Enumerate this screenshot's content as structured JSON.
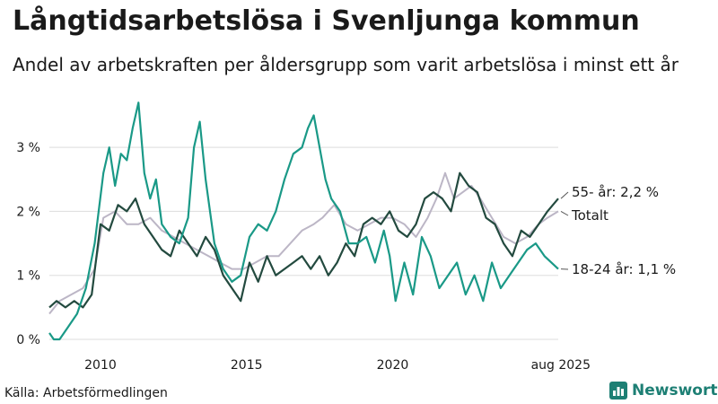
{
  "title": "Långtidsarbetslösa i Svenljunga kommun",
  "subtitle": "Andel av arbetskraften per åldersgrupp som varit arbetslösa i minst ett år",
  "source": "Källa: Arbetsförmedlingen",
  "brand": {
    "name": "Newsworthy",
    "icon": "bar-chart-logo-icon"
  },
  "colors": {
    "s55": "#234a3f",
    "total": "#bcb6c6",
    "youth": "#1a9987",
    "grid": "#dddddd",
    "brand": "#1d7f74"
  },
  "chart_data": {
    "type": "line",
    "title": "Långtidsarbetslösa i Svenljunga kommun",
    "xlim": [
      2008.25,
      2025.67
    ],
    "ylim": [
      0,
      3.9
    ],
    "grid": true,
    "y_ticks": [
      {
        "value": 0,
        "label": "0 %"
      },
      {
        "value": 1,
        "label": "1 %"
      },
      {
        "value": 2,
        "label": "2 %"
      },
      {
        "value": 3,
        "label": "3 %"
      }
    ],
    "x_ticks": [
      {
        "value": 2010,
        "label": "2010"
      },
      {
        "value": 2015,
        "label": "2015"
      },
      {
        "value": 2020,
        "label": "2020"
      },
      {
        "value": 2025.67,
        "label": "aug 2025"
      }
    ],
    "end_labels": [
      {
        "series": "s55",
        "label": "55- år: 2,2 %"
      },
      {
        "series": "total",
        "label": "Totalt"
      },
      {
        "series": "youth",
        "label": "18-24 år: 1,1 %"
      }
    ],
    "series": [
      {
        "key": "total",
        "name": "Totalt",
        "x": [
          2008.25,
          2008.6,
          2009.0,
          2009.4,
          2009.8,
          2010.1,
          2010.5,
          2010.9,
          2011.3,
          2011.7,
          2012.1,
          2012.5,
          2012.9,
          2013.3,
          2013.7,
          2014.1,
          2014.5,
          2014.9,
          2015.3,
          2015.7,
          2016.1,
          2016.5,
          2016.9,
          2017.3,
          2017.6,
          2018.0,
          2018.4,
          2018.8,
          2019.2,
          2019.6,
          2020.0,
          2020.4,
          2020.8,
          2021.2,
          2021.5,
          2021.8,
          2022.1,
          2022.4,
          2022.7,
          2023.0,
          2023.4,
          2023.8,
          2024.2,
          2024.6,
          2025.0,
          2025.3,
          2025.67
        ],
        "values": [
          0.4,
          0.6,
          0.7,
          0.8,
          1.1,
          1.9,
          2.0,
          1.8,
          1.8,
          1.9,
          1.7,
          1.6,
          1.5,
          1.4,
          1.3,
          1.2,
          1.1,
          1.1,
          1.2,
          1.3,
          1.3,
          1.5,
          1.7,
          1.8,
          1.9,
          2.1,
          1.8,
          1.7,
          1.8,
          1.9,
          1.9,
          1.8,
          1.6,
          1.9,
          2.2,
          2.6,
          2.2,
          2.3,
          2.4,
          2.2,
          1.9,
          1.6,
          1.5,
          1.6,
          1.8,
          1.9,
          2.0
        ]
      },
      {
        "key": "s55",
        "name": "55- år",
        "x": [
          2008.25,
          2008.5,
          2008.8,
          2009.1,
          2009.4,
          2009.7,
          2010.0,
          2010.3,
          2010.6,
          2010.9,
          2011.2,
          2011.5,
          2011.8,
          2012.1,
          2012.4,
          2012.7,
          2013.0,
          2013.3,
          2013.6,
          2013.9,
          2014.2,
          2014.5,
          2014.8,
          2015.1,
          2015.4,
          2015.7,
          2016.0,
          2016.3,
          2016.6,
          2016.9,
          2017.2,
          2017.5,
          2017.8,
          2018.1,
          2018.4,
          2018.7,
          2019.0,
          2019.3,
          2019.6,
          2019.9,
          2020.2,
          2020.5,
          2020.8,
          2021.1,
          2021.4,
          2021.7,
          2022.0,
          2022.3,
          2022.6,
          2022.9,
          2023.2,
          2023.5,
          2023.8,
          2024.1,
          2024.4,
          2024.7,
          2025.0,
          2025.3,
          2025.67
        ],
        "values": [
          0.5,
          0.6,
          0.5,
          0.6,
          0.5,
          0.7,
          1.8,
          1.7,
          2.1,
          2.0,
          2.2,
          1.8,
          1.6,
          1.4,
          1.3,
          1.7,
          1.5,
          1.3,
          1.6,
          1.4,
          1.0,
          0.8,
          0.6,
          1.2,
          0.9,
          1.3,
          1.0,
          1.1,
          1.2,
          1.3,
          1.1,
          1.3,
          1.0,
          1.2,
          1.5,
          1.3,
          1.8,
          1.9,
          1.8,
          2.0,
          1.7,
          1.6,
          1.8,
          2.2,
          2.3,
          2.2,
          2.0,
          2.6,
          2.4,
          2.3,
          1.9,
          1.8,
          1.5,
          1.3,
          1.7,
          1.6,
          1.8,
          2.0,
          2.2
        ]
      },
      {
        "key": "youth",
        "name": "18-24 år",
        "x": [
          2008.25,
          2008.4,
          2008.6,
          2008.9,
          2009.2,
          2009.5,
          2009.8,
          2010.1,
          2010.3,
          2010.5,
          2010.7,
          2010.9,
          2011.1,
          2011.3,
          2011.5,
          2011.7,
          2011.9,
          2012.1,
          2012.4,
          2012.7,
          2013.0,
          2013.2,
          2013.4,
          2013.6,
          2013.9,
          2014.2,
          2014.5,
          2014.8,
          2015.1,
          2015.4,
          2015.7,
          2016.0,
          2016.3,
          2016.6,
          2016.9,
          2017.1,
          2017.3,
          2017.5,
          2017.7,
          2017.9,
          2018.2,
          2018.5,
          2018.8,
          2019.1,
          2019.4,
          2019.7,
          2019.9,
          2020.1,
          2020.4,
          2020.7,
          2021.0,
          2021.3,
          2021.6,
          2021.9,
          2022.2,
          2022.5,
          2022.8,
          2023.1,
          2023.4,
          2023.7,
          2024.0,
          2024.3,
          2024.6,
          2024.9,
          2025.2,
          2025.67
        ],
        "values": [
          0.1,
          0.0,
          0.0,
          0.2,
          0.4,
          0.8,
          1.5,
          2.6,
          3.0,
          2.4,
          2.9,
          2.8,
          3.3,
          3.7,
          2.6,
          2.2,
          2.5,
          1.8,
          1.6,
          1.5,
          1.9,
          3.0,
          3.4,
          2.5,
          1.5,
          1.1,
          0.9,
          1.0,
          1.6,
          1.8,
          1.7,
          2.0,
          2.5,
          2.9,
          3.0,
          3.3,
          3.5,
          3.0,
          2.5,
          2.2,
          2.0,
          1.5,
          1.5,
          1.6,
          1.2,
          1.7,
          1.3,
          0.6,
          1.2,
          0.7,
          1.6,
          1.3,
          0.8,
          1.0,
          1.2,
          0.7,
          1.0,
          0.6,
          1.2,
          0.8,
          1.0,
          1.2,
          1.4,
          1.5,
          1.3,
          1.1
        ]
      }
    ]
  }
}
